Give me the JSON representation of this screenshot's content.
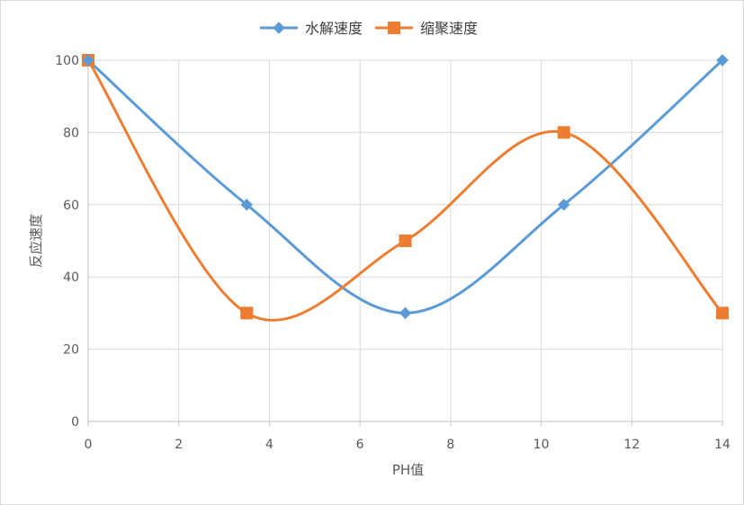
{
  "chart_data": {
    "type": "line",
    "title": "",
    "xlabel": "PH值",
    "ylabel": "反应速度",
    "xlim": [
      0,
      14
    ],
    "ylim": [
      0,
      100
    ],
    "x_ticks": [
      0,
      2,
      4,
      6,
      8,
      10,
      12,
      14
    ],
    "y_ticks": [
      0,
      20,
      40,
      60,
      80,
      100
    ],
    "grid": true,
    "smooth": true,
    "legend_position": "top-center",
    "series": [
      {
        "name": "水解速度",
        "color": "#5b9bd5",
        "marker": "diamond",
        "points": [
          {
            "x": 0,
            "y": 100
          },
          {
            "x": 3.5,
            "y": 60
          },
          {
            "x": 7,
            "y": 30
          },
          {
            "x": 10.5,
            "y": 60
          },
          {
            "x": 14,
            "y": 100
          }
        ]
      },
      {
        "name": "缩聚速度",
        "color": "#ed7d31",
        "marker": "square",
        "points": [
          {
            "x": 0,
            "y": 100
          },
          {
            "x": 3.5,
            "y": 30
          },
          {
            "x": 7,
            "y": 50
          },
          {
            "x": 10.5,
            "y": 80
          },
          {
            "x": 14,
            "y": 30
          }
        ]
      }
    ]
  }
}
